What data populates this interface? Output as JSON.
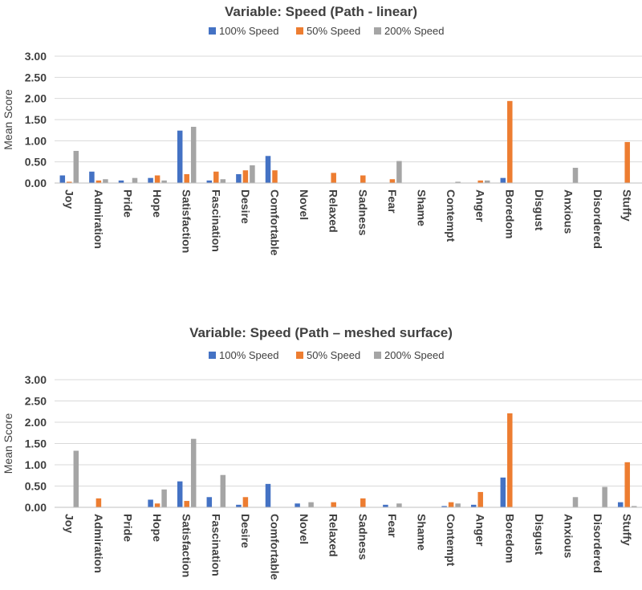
{
  "chart_data": [
    {
      "type": "bar",
      "title": "Variable: Speed (Path - linear)",
      "xlabel": "",
      "ylabel": "Mean Score",
      "ylim": [
        0,
        3
      ],
      "yticks": [
        "0.00",
        "0.50",
        "1.00",
        "1.50",
        "2.00",
        "2.50",
        "3.00"
      ],
      "grid": true,
      "legend_position": "top-center",
      "categories": [
        "Joy",
        "Admiration",
        "Pride",
        "Hope",
        "Satisfaction",
        "Fascination",
        "Desire",
        "Comfortable",
        "Novel",
        "Relaxed",
        "Sadness",
        "Fear",
        "Shame",
        "Contempt",
        "Anger",
        "Boredom",
        "Disgust",
        "Anxious",
        "Disordered",
        "Stuffy"
      ],
      "series": [
        {
          "name": "100% Speed",
          "color": "#4472C4",
          "values": [
            0.18,
            0.27,
            0.06,
            0.12,
            1.24,
            0.06,
            0.21,
            0.64,
            0,
            0,
            0,
            0,
            0,
            0,
            0,
            0.12,
            0,
            0,
            0,
            0
          ]
        },
        {
          "name": "50% Speed",
          "color": "#ED7D31",
          "values": [
            0.03,
            0.06,
            0,
            0.18,
            0.21,
            0.27,
            0.3,
            0.3,
            0,
            0.24,
            0.18,
            0.09,
            0,
            0,
            0.06,
            1.94,
            0,
            0,
            0,
            0.97
          ]
        },
        {
          "name": "200% Speed",
          "color": "#A5A5A5",
          "values": [
            0.76,
            0.09,
            0.12,
            0.06,
            1.33,
            0.09,
            0.42,
            0,
            0,
            0,
            0,
            0.52,
            0,
            0.03,
            0.06,
            0,
            0,
            0.36,
            0,
            0
          ]
        }
      ]
    },
    {
      "type": "bar",
      "title": "Variable: Speed (Path – meshed surface)",
      "xlabel": "",
      "ylabel": "Mean Score",
      "ylim": [
        0,
        3
      ],
      "yticks": [
        "0.00",
        "0.50",
        "1.00",
        "1.50",
        "2.00",
        "2.50",
        "3.00"
      ],
      "grid": true,
      "legend_position": "top-center",
      "categories": [
        "Joy",
        "Admiration",
        "Pride",
        "Hope",
        "Satisfaction",
        "Fascination",
        "Desire",
        "Comfortable",
        "Novel",
        "Relaxed",
        "Sadness",
        "Fear",
        "Shame",
        "Contempt",
        "Anger",
        "Boredom",
        "Disgust",
        "Anxious",
        "Disordered",
        "Stuffy"
      ],
      "series": [
        {
          "name": "100% Speed",
          "color": "#4472C4",
          "values": [
            0,
            0,
            0,
            0.18,
            0.61,
            0.24,
            0.06,
            0.55,
            0.09,
            0,
            0,
            0.06,
            0,
            0.03,
            0.06,
            0.7,
            0,
            0,
            0,
            0.12
          ]
        },
        {
          "name": "50% Speed",
          "color": "#ED7D31",
          "values": [
            0,
            0.21,
            0,
            0.09,
            0.15,
            0,
            0.24,
            0,
            0,
            0.12,
            0.21,
            0,
            0,
            0.12,
            0.36,
            2.21,
            0,
            0,
            0,
            1.06
          ]
        },
        {
          "name": "200% Speed",
          "color": "#A5A5A5",
          "values": [
            1.33,
            0,
            0,
            0.42,
            1.61,
            0.76,
            0,
            0,
            0.12,
            0,
            0,
            0.09,
            0,
            0.09,
            0,
            0,
            0,
            0.24,
            0.48,
            0.03
          ]
        }
      ]
    }
  ]
}
